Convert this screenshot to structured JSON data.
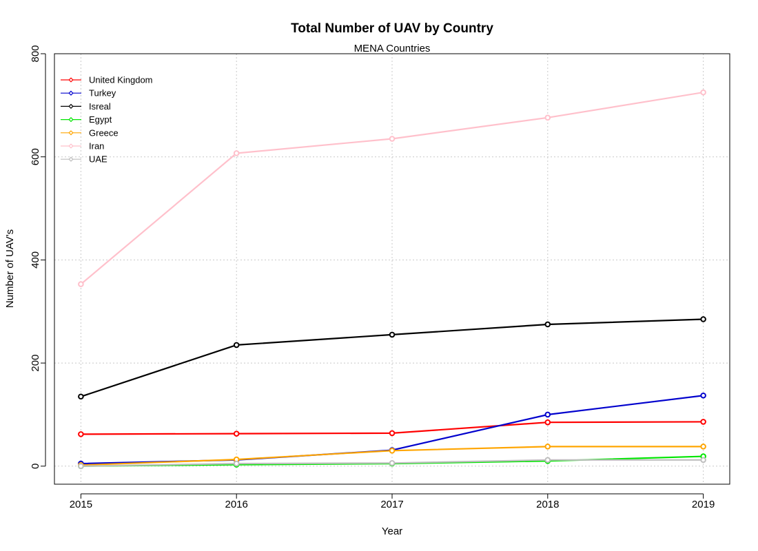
{
  "chart_data": {
    "type": "line",
    "title": "Total Number of UAV by Country",
    "subtitle": "MENA Countries",
    "xlabel": "Year",
    "ylabel": "Number of UAV's",
    "x": [
      2015,
      2016,
      2017,
      2018,
      2019
    ],
    "xlim": [
      2014.83,
      2019.17
    ],
    "ylim": [
      -35,
      800
    ],
    "yticks": [
      0,
      200,
      400,
      600,
      800
    ],
    "grid": true,
    "legend_position": "top-left",
    "series": [
      {
        "name": "United Kingdom",
        "color": "#ff0000",
        "values": [
          62,
          63,
          64,
          85,
          86
        ]
      },
      {
        "name": "Turkey",
        "color": "#0000cd",
        "values": [
          5,
          12,
          31,
          100,
          137
        ]
      },
      {
        "name": "Isreal",
        "color": "#000000",
        "values": [
          135,
          235,
          255,
          275,
          285
        ]
      },
      {
        "name": "Egypt",
        "color": "#00e600",
        "values": [
          0,
          3,
          5,
          10,
          19
        ]
      },
      {
        "name": "Greece",
        "color": "#ffa500",
        "values": [
          2,
          13,
          30,
          38,
          38
        ]
      },
      {
        "name": "Iran",
        "color": "#ffc0cb",
        "values": [
          353,
          607,
          635,
          676,
          725
        ]
      },
      {
        "name": "UAE",
        "color": "#bebebe",
        "values": [
          0,
          5,
          6,
          12,
          12
        ]
      }
    ]
  }
}
